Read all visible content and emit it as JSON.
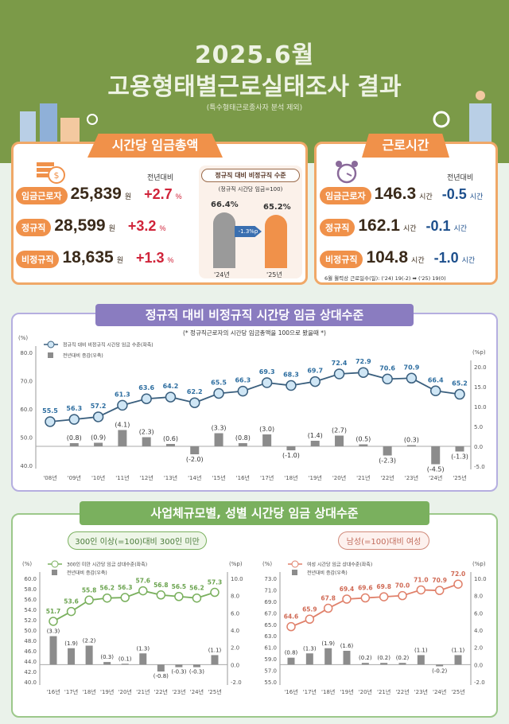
{
  "header": {
    "year_month": "2025.6월",
    "title": "고용형태별근로실태조사 결과",
    "note": "(특수형태근로종사자 분석 제외)"
  },
  "wage": {
    "title": "시간당 임금총액",
    "yoy_label": "전년대비",
    "rows": [
      {
        "label": "임금근로자",
        "value": "25,839",
        "unit": "원",
        "change": "+2.7",
        "change_unit": "%"
      },
      {
        "label": "정규직",
        "value": "28,599",
        "unit": "원",
        "change": "+3.2",
        "change_unit": "%"
      },
      {
        "label": "비정규직",
        "value": "18,635",
        "unit": "원",
        "change": "+1.3",
        "change_unit": "%"
      }
    ],
    "mini": {
      "title": "정규직 대비 비정규직 수준",
      "subtitle": "(정규직 시간당 임금=100)",
      "bars": [
        {
          "year": "'24년",
          "value": 66.4,
          "label": "66.4%"
        },
        {
          "year": "'25년",
          "value": 65.2,
          "label": "65.2%"
        }
      ],
      "change": "-1.3%p",
      "colors": [
        "#9a9a9a",
        "#f0914a"
      ]
    }
  },
  "hours": {
    "title": "근로시간",
    "yoy_label": "전년대비",
    "rows": [
      {
        "label": "임금근로자",
        "value": "146.3",
        "unit": "시간",
        "change": "-0.5",
        "change_unit": "시간"
      },
      {
        "label": "정규직",
        "value": "162.1",
        "unit": "시간",
        "change": "-0.1",
        "change_unit": "시간"
      },
      {
        "label": "비정규직",
        "value": "104.8",
        "unit": "시간",
        "change": "-1.0",
        "change_unit": "시간"
      }
    ],
    "note": "6월 월력상 근로일수(일): ('24) 19(-2) ➡ ('25) 19(0)"
  },
  "colors": {
    "green": "#7b9a48",
    "orange": "#f0914a",
    "purple": "#8a7cc0",
    "blue_line": "#3a5f7e",
    "bar": "#8c8c8c",
    "pink_line": "#e0806a",
    "green_line": "#7ab05e"
  },
  "section2_title": "정규직 대비 비정규직 시간당 임금 상대수준",
  "section3_title": "사업체규모별, 성별 시간당 임금 상대수준",
  "chart_data": [
    {
      "type": "line+bar",
      "note": "(* 정규직근로자의 시간당 임금총액을 100으로 봤을때 *)",
      "ylabel_left": "(%)",
      "ylabel_right": "(%p)",
      "ylim_left": [
        40,
        80
      ],
      "yticks_left": [
        "40.0",
        "50.0",
        "60.0",
        "70.0",
        "80.0"
      ],
      "ylim_right": [
        -5,
        20
      ],
      "yticks_right": [
        "-5.0",
        "0.0",
        "5.0",
        "10.0",
        "15.0",
        "20.0"
      ],
      "categories": [
        "'08년",
        "'09년",
        "'10년",
        "'11년",
        "'12년",
        "'13년",
        "'14년",
        "'15년",
        "'16년",
        "'17년",
        "'18년",
        "'19년",
        "'20년",
        "'21년",
        "'22년",
        "'23년",
        "'24년",
        "'25년"
      ],
      "series": [
        {
          "name": "정규직 대비 비정규직 시간당 임금 수준(좌축)",
          "kind": "line",
          "values": [
            55.5,
            56.3,
            57.2,
            61.3,
            63.6,
            64.2,
            62.2,
            65.5,
            66.3,
            69.3,
            68.3,
            69.7,
            72.4,
            72.9,
            70.6,
            70.9,
            66.4,
            65.2
          ]
        },
        {
          "name": "전년대비 증감(우축)",
          "kind": "bar",
          "values": [
            null,
            0.8,
            0.9,
            4.1,
            2.3,
            0.6,
            -2.0,
            3.3,
            0.8,
            3.0,
            -1.0,
            1.4,
            2.7,
            0.5,
            -2.3,
            0.3,
            -4.5,
            -1.3
          ]
        }
      ],
      "legend": "top-left",
      "grid": false
    },
    {
      "type": "line+bar",
      "title": "300인 이상(=100)대비 300인 미만",
      "ylabel_left": "(%)",
      "ylabel_right": "(%p)",
      "ylim_left": [
        40,
        60
      ],
      "yticks_left": [
        "40.0",
        "42.0",
        "44.0",
        "46.0",
        "48.0",
        "50.0",
        "52.0",
        "54.0",
        "56.0",
        "58.0",
        "60.0"
      ],
      "ylim_right": [
        -2,
        10
      ],
      "yticks_right": [
        "-2.0",
        "0.0",
        "2.0",
        "4.0",
        "6.0",
        "8.0",
        "10.0"
      ],
      "categories": [
        "'16년",
        "'17년",
        "'18년",
        "'19년",
        "'20년",
        "'21년",
        "'22년",
        "'23년",
        "'24년",
        "'25년"
      ],
      "series": [
        {
          "name": "300인 미만 시간당 임금 상대수준(좌축)",
          "kind": "line",
          "values": [
            51.7,
            53.6,
            55.8,
            56.2,
            56.3,
            57.6,
            56.8,
            56.5,
            56.2,
            57.3
          ]
        },
        {
          "name": "전년대비 증감(우축)",
          "kind": "bar",
          "values": [
            3.3,
            1.9,
            2.2,
            0.3,
            0.1,
            1.3,
            -0.8,
            -0.3,
            -0.3,
            1.1
          ]
        }
      ],
      "legend": "top-left",
      "grid": false
    },
    {
      "type": "line+bar",
      "title": "남성(=100)대비 여성",
      "ylabel_left": "(%)",
      "ylabel_right": "(%p)",
      "ylim_left": [
        55,
        73
      ],
      "yticks_left": [
        "55.0",
        "57.0",
        "59.0",
        "61.0",
        "63.0",
        "65.0",
        "67.0",
        "69.0",
        "71.0",
        "73.0"
      ],
      "ylim_right": [
        -2,
        10
      ],
      "yticks_right": [
        "-2.0",
        "0.0",
        "2.0",
        "4.0",
        "6.0",
        "8.0",
        "10.0"
      ],
      "categories": [
        "'16년",
        "'17년",
        "'18년",
        "'19년",
        "'20년",
        "'21년",
        "'22년",
        "'23년",
        "'24년",
        "'25년"
      ],
      "series": [
        {
          "name": "여성 시간당 임금 상대수준(좌축)",
          "kind": "line",
          "values": [
            64.6,
            65.9,
            67.8,
            69.4,
            69.6,
            69.8,
            70.0,
            71.0,
            70.9,
            72.0
          ]
        },
        {
          "name": "전년대비 증감(우축)",
          "kind": "bar",
          "values": [
            0.8,
            1.3,
            1.9,
            1.6,
            0.2,
            0.2,
            0.2,
            1.1,
            -0.2,
            1.1
          ]
        }
      ],
      "legend": "top-left",
      "grid": false
    }
  ]
}
